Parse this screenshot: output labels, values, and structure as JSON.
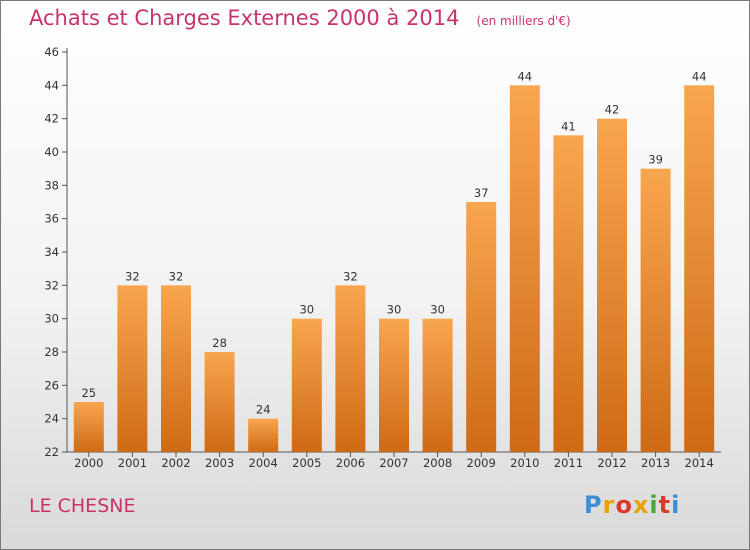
{
  "header": {
    "title": "Achats et Charges Externes 2000 à 2014",
    "unit": "(en milliers d'€)"
  },
  "footer": {
    "commune": "LE CHESNE",
    "logo_text": "Proxiti",
    "logo_colors": [
      "#3a8fd6",
      "#e8a300",
      "#d93a2a",
      "#e8a300",
      "#4aa83b",
      "#d93a2a",
      "#3a8fd6"
    ]
  },
  "colors": {
    "bar_light": "#f8a64f",
    "bar_dark": "#cf6a14",
    "title": "#c8336b"
  },
  "chart_data": {
    "type": "bar",
    "title": "Achats et Charges Externes 2000 à 2014",
    "subtitle": "(en milliers d'€)",
    "xlabel": "",
    "ylabel": "",
    "categories": [
      "2000",
      "2001",
      "2002",
      "2003",
      "2004",
      "2005",
      "2006",
      "2007",
      "2008",
      "2009",
      "2010",
      "2011",
      "2012",
      "2013",
      "2014"
    ],
    "values": [
      25,
      32,
      32,
      28,
      24,
      30,
      32,
      30,
      30,
      37,
      44,
      41,
      42,
      39,
      44
    ],
    "ylim": [
      22,
      46
    ],
    "yticks": [
      22,
      24,
      26,
      28,
      30,
      32,
      34,
      36,
      38,
      40,
      42,
      44,
      46
    ],
    "grid": false,
    "legend": "none"
  }
}
